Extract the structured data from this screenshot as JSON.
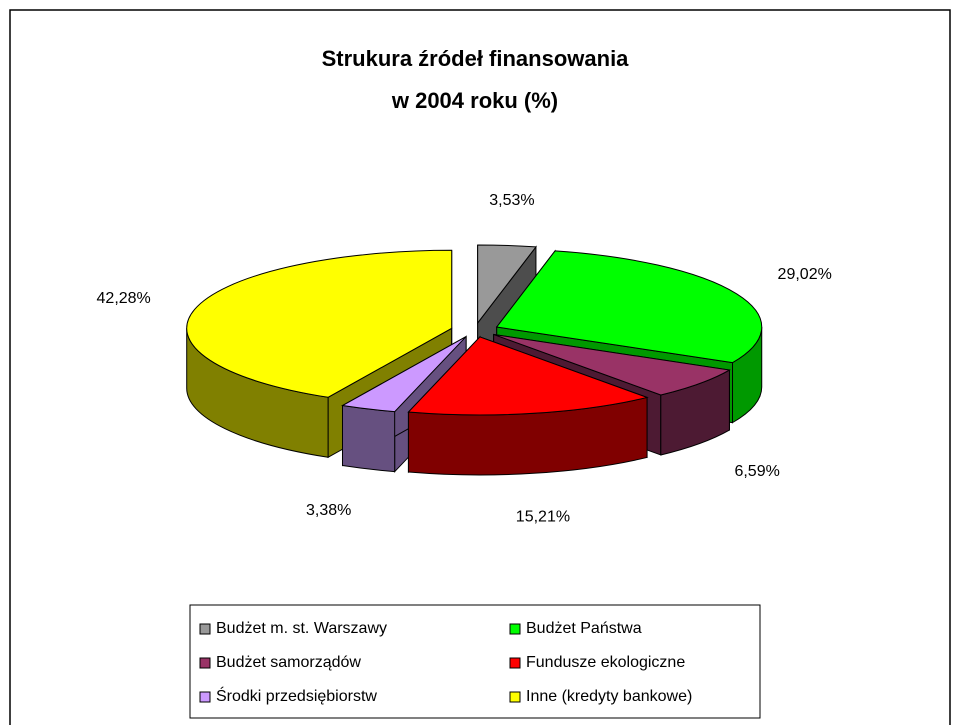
{
  "chart_data": {
    "type": "pie3d",
    "title": "Strukura źródeł finansowania w 2004 roku (%)",
    "categories": [
      "Budżet m. st. Warszawy",
      "Budżet Państwa",
      "Budżet samorządów",
      "Fundusze ekologiczne",
      "Środki przedsiębiorstw",
      "Inne (kredyty bankowe)"
    ],
    "values": [
      3.53,
      29.02,
      6.59,
      15.21,
      3.38,
      42.28
    ],
    "value_labels": [
      "3,53%",
      "29,02%",
      "6,59%",
      "15,21%",
      "3,38%",
      "42,28%"
    ],
    "colors": [
      "#999999",
      "#00ff00",
      "#993366",
      "#ff0000",
      "#cc99ff",
      "#ffff00"
    ],
    "side_colors": [
      "#4d4d4d",
      "#009900",
      "#4d1a33",
      "#800000",
      "#665080",
      "#808000"
    ],
    "exploded": true,
    "legend": "bottom"
  }
}
